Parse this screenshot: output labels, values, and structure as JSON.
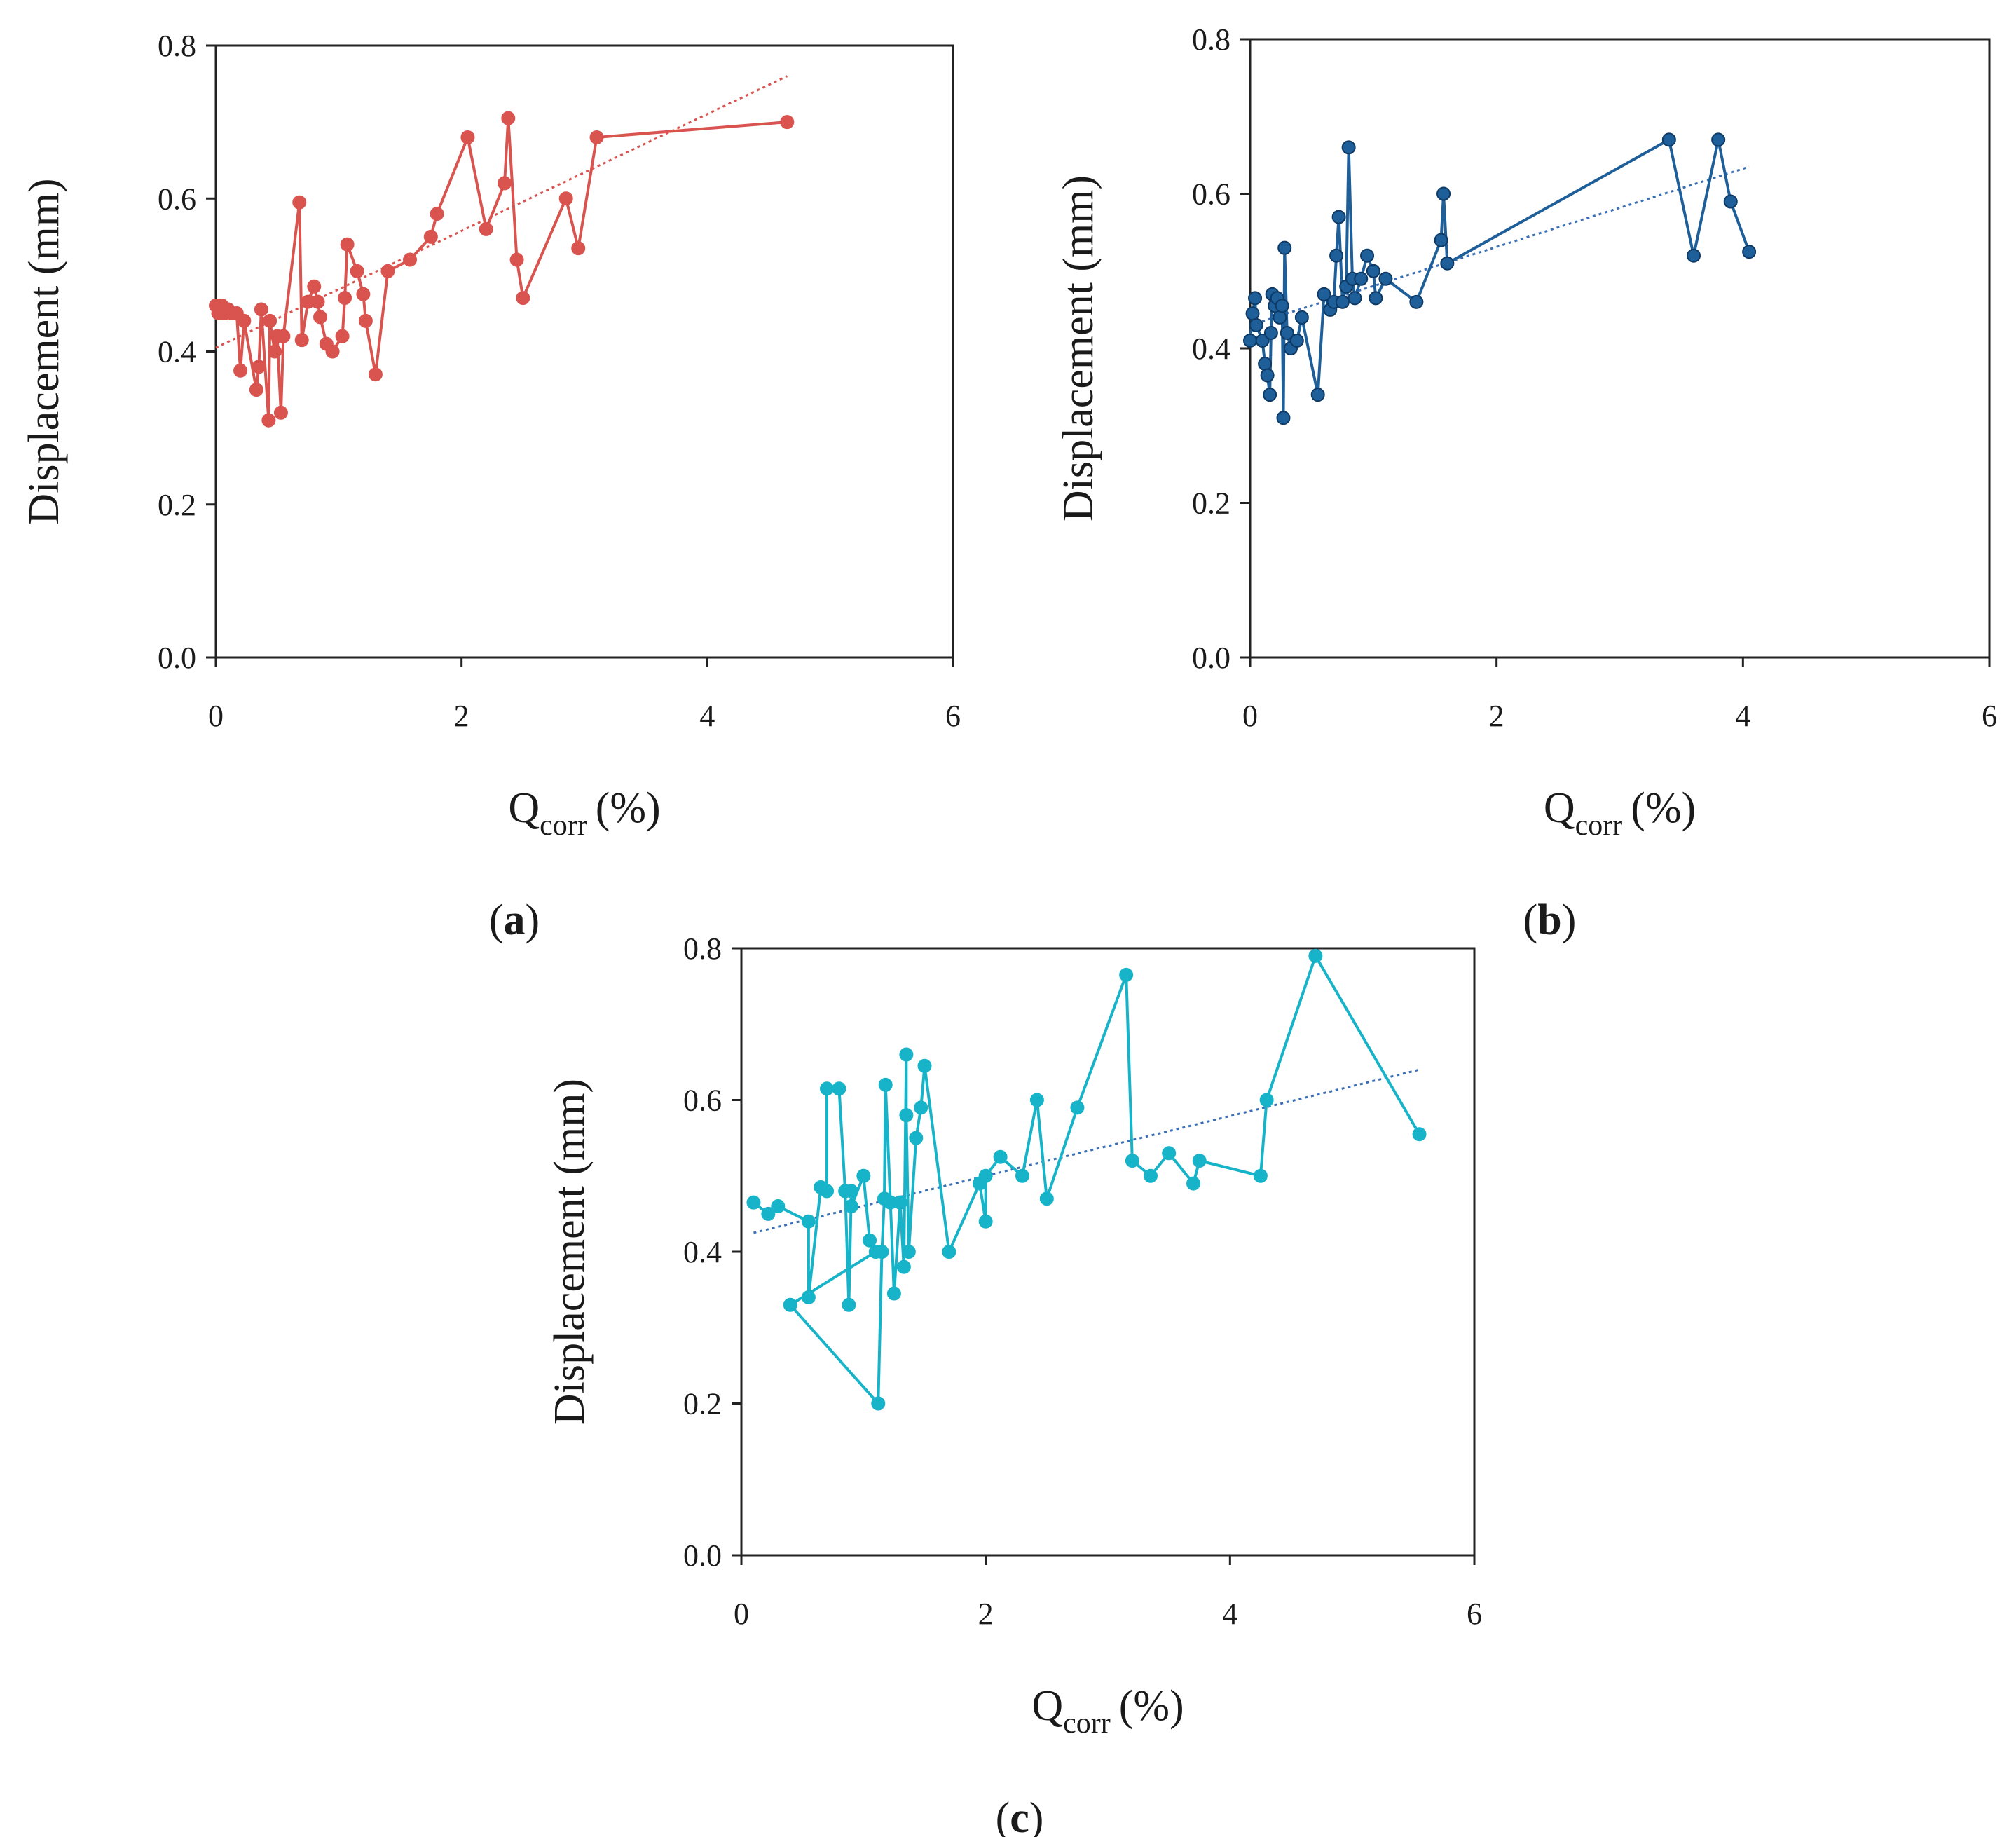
{
  "chart_data": [
    {
      "type": "line",
      "panel_label": "a",
      "color": "#d9534f",
      "xlabel": "Q",
      "xlabel_sub": "corr",
      "xlabel_unit": "(%)",
      "ylabel": "Displacement (mm)",
      "xlim": [
        0,
        6
      ],
      "ylim": [
        0,
        0.8
      ],
      "xticks": [
        "0",
        "2",
        "4",
        "6"
      ],
      "yticks": [
        "0.0",
        "0.2",
        "0.4",
        "0.6",
        "0.8"
      ],
      "grid": false,
      "trendline": {
        "style": "dotted",
        "x": [
          0,
          4.65
        ],
        "y": [
          0.405,
          0.76
        ]
      },
      "points": [
        [
          0.0,
          0.46
        ],
        [
          0.02,
          0.45
        ],
        [
          0.05,
          0.46
        ],
        [
          0.07,
          0.45
        ],
        [
          0.1,
          0.455
        ],
        [
          0.13,
          0.45
        ],
        [
          0.17,
          0.45
        ],
        [
          0.2,
          0.375
        ],
        [
          0.23,
          0.44
        ],
        [
          0.33,
          0.35
        ],
        [
          0.35,
          0.38
        ],
        [
          0.37,
          0.455
        ],
        [
          0.43,
          0.31
        ],
        [
          0.44,
          0.44
        ],
        [
          0.48,
          0.4
        ],
        [
          0.5,
          0.42
        ],
        [
          0.53,
          0.32
        ],
        [
          0.55,
          0.42
        ],
        [
          0.68,
          0.595
        ],
        [
          0.7,
          0.415
        ],
        [
          0.75,
          0.465
        ],
        [
          0.8,
          0.485
        ],
        [
          0.83,
          0.465
        ],
        [
          0.85,
          0.445
        ],
        [
          0.9,
          0.41
        ],
        [
          0.95,
          0.4
        ],
        [
          1.03,
          0.42
        ],
        [
          1.05,
          0.47
        ],
        [
          1.07,
          0.54
        ],
        [
          1.15,
          0.505
        ],
        [
          1.2,
          0.475
        ],
        [
          1.22,
          0.44
        ],
        [
          1.3,
          0.37
        ],
        [
          1.4,
          0.505
        ],
        [
          1.58,
          0.52
        ],
        [
          1.75,
          0.55
        ],
        [
          1.8,
          0.58
        ],
        [
          2.05,
          0.68
        ],
        [
          2.2,
          0.56
        ],
        [
          2.35,
          0.62
        ],
        [
          2.38,
          0.705
        ],
        [
          2.45,
          0.52
        ],
        [
          2.5,
          0.47
        ],
        [
          2.85,
          0.6
        ],
        [
          2.95,
          0.535
        ],
        [
          3.1,
          0.68
        ],
        [
          4.65,
          0.7
        ]
      ]
    },
    {
      "type": "line",
      "panel_label": "b",
      "color": "#1f5f99",
      "xlabel": "Q",
      "xlabel_sub": "corr",
      "xlabel_unit": "(%)",
      "ylabel": "Displacement (mm)",
      "xlim": [
        0,
        6
      ],
      "ylim": [
        0,
        0.8
      ],
      "xticks": [
        "0",
        "2",
        "4",
        "6"
      ],
      "yticks": [
        "0.0",
        "0.2",
        "0.4",
        "0.6",
        "0.8"
      ],
      "grid": false,
      "trendline": {
        "style": "dotted",
        "x": [
          0,
          4.05
        ],
        "y": [
          0.43,
          0.635
        ]
      },
      "points": [
        [
          0.0,
          0.41
        ],
        [
          0.02,
          0.445
        ],
        [
          0.04,
          0.465
        ],
        [
          0.05,
          0.43
        ],
        [
          0.1,
          0.41
        ],
        [
          0.12,
          0.38
        ],
        [
          0.14,
          0.365
        ],
        [
          0.16,
          0.34
        ],
        [
          0.17,
          0.42
        ],
        [
          0.18,
          0.47
        ],
        [
          0.2,
          0.455
        ],
        [
          0.22,
          0.465
        ],
        [
          0.24,
          0.44
        ],
        [
          0.26,
          0.455
        ],
        [
          0.27,
          0.31
        ],
        [
          0.28,
          0.53
        ],
        [
          0.3,
          0.42
        ],
        [
          0.33,
          0.4
        ],
        [
          0.38,
          0.41
        ],
        [
          0.42,
          0.44
        ],
        [
          0.55,
          0.34
        ],
        [
          0.6,
          0.47
        ],
        [
          0.65,
          0.45
        ],
        [
          0.68,
          0.46
        ],
        [
          0.7,
          0.52
        ],
        [
          0.72,
          0.57
        ],
        [
          0.75,
          0.46
        ],
        [
          0.78,
          0.48
        ],
        [
          0.8,
          0.66
        ],
        [
          0.83,
          0.49
        ],
        [
          0.85,
          0.465
        ],
        [
          0.9,
          0.49
        ],
        [
          0.95,
          0.52
        ],
        [
          1.0,
          0.5
        ],
        [
          1.02,
          0.465
        ],
        [
          1.1,
          0.49
        ],
        [
          1.35,
          0.46
        ],
        [
          1.55,
          0.54
        ],
        [
          1.57,
          0.6
        ],
        [
          1.6,
          0.51
        ],
        [
          3.4,
          0.67
        ],
        [
          3.6,
          0.52
        ],
        [
          3.8,
          0.67
        ],
        [
          3.9,
          0.59
        ],
        [
          4.05,
          0.525
        ]
      ]
    },
    {
      "type": "line",
      "panel_label": "c",
      "color": "#17b3c8",
      "xlabel": "Q",
      "xlabel_sub": "corr",
      "xlabel_unit": "(%)",
      "ylabel": "Displacement (mm)",
      "xlim": [
        0,
        6
      ],
      "ylim": [
        0,
        0.8
      ],
      "xticks": [
        "0",
        "2",
        "4",
        "6"
      ],
      "yticks": [
        "0.0",
        "0.2",
        "0.4",
        "0.6",
        "0.8"
      ],
      "grid": false,
      "trendline": {
        "style": "dotted",
        "x": [
          0.1,
          5.55
        ],
        "y": [
          0.425,
          0.64
        ]
      },
      "points": [
        [
          0.1,
          0.465
        ],
        [
          0.22,
          0.45
        ],
        [
          0.3,
          0.46
        ],
        [
          0.55,
          0.44
        ],
        [
          0.55,
          0.34
        ],
        [
          0.65,
          0.485
        ],
        [
          0.7,
          0.48
        ],
        [
          0.7,
          0.615
        ],
        [
          0.8,
          0.615
        ],
        [
          0.85,
          0.48
        ],
        [
          0.88,
          0.33
        ],
        [
          0.9,
          0.48
        ],
        [
          0.9,
          0.46
        ],
        [
          1.0,
          0.5
        ],
        [
          1.05,
          0.415
        ],
        [
          1.1,
          0.4
        ],
        [
          0.4,
          0.33
        ],
        [
          1.12,
          0.2
        ],
        [
          1.15,
          0.4
        ],
        [
          1.17,
          0.47
        ],
        [
          1.18,
          0.62
        ],
        [
          1.22,
          0.465
        ],
        [
          1.25,
          0.345
        ],
        [
          1.3,
          0.465
        ],
        [
          1.33,
          0.38
        ],
        [
          1.35,
          0.66
        ],
        [
          1.35,
          0.58
        ],
        [
          1.37,
          0.4
        ],
        [
          1.43,
          0.55
        ],
        [
          1.47,
          0.59
        ],
        [
          1.5,
          0.645
        ],
        [
          1.7,
          0.4
        ],
        [
          1.95,
          0.49
        ],
        [
          2.0,
          0.44
        ],
        [
          2.0,
          0.5
        ],
        [
          2.12,
          0.525
        ],
        [
          2.3,
          0.5
        ],
        [
          2.42,
          0.6
        ],
        [
          2.5,
          0.47
        ],
        [
          2.75,
          0.59
        ],
        [
          3.15,
          0.765
        ],
        [
          3.2,
          0.52
        ],
        [
          3.35,
          0.5
        ],
        [
          3.5,
          0.53
        ],
        [
          3.7,
          0.49
        ],
        [
          3.75,
          0.52
        ],
        [
          4.25,
          0.5
        ],
        [
          4.3,
          0.6
        ],
        [
          4.7,
          0.79
        ],
        [
          5.55,
          0.555
        ]
      ]
    }
  ]
}
